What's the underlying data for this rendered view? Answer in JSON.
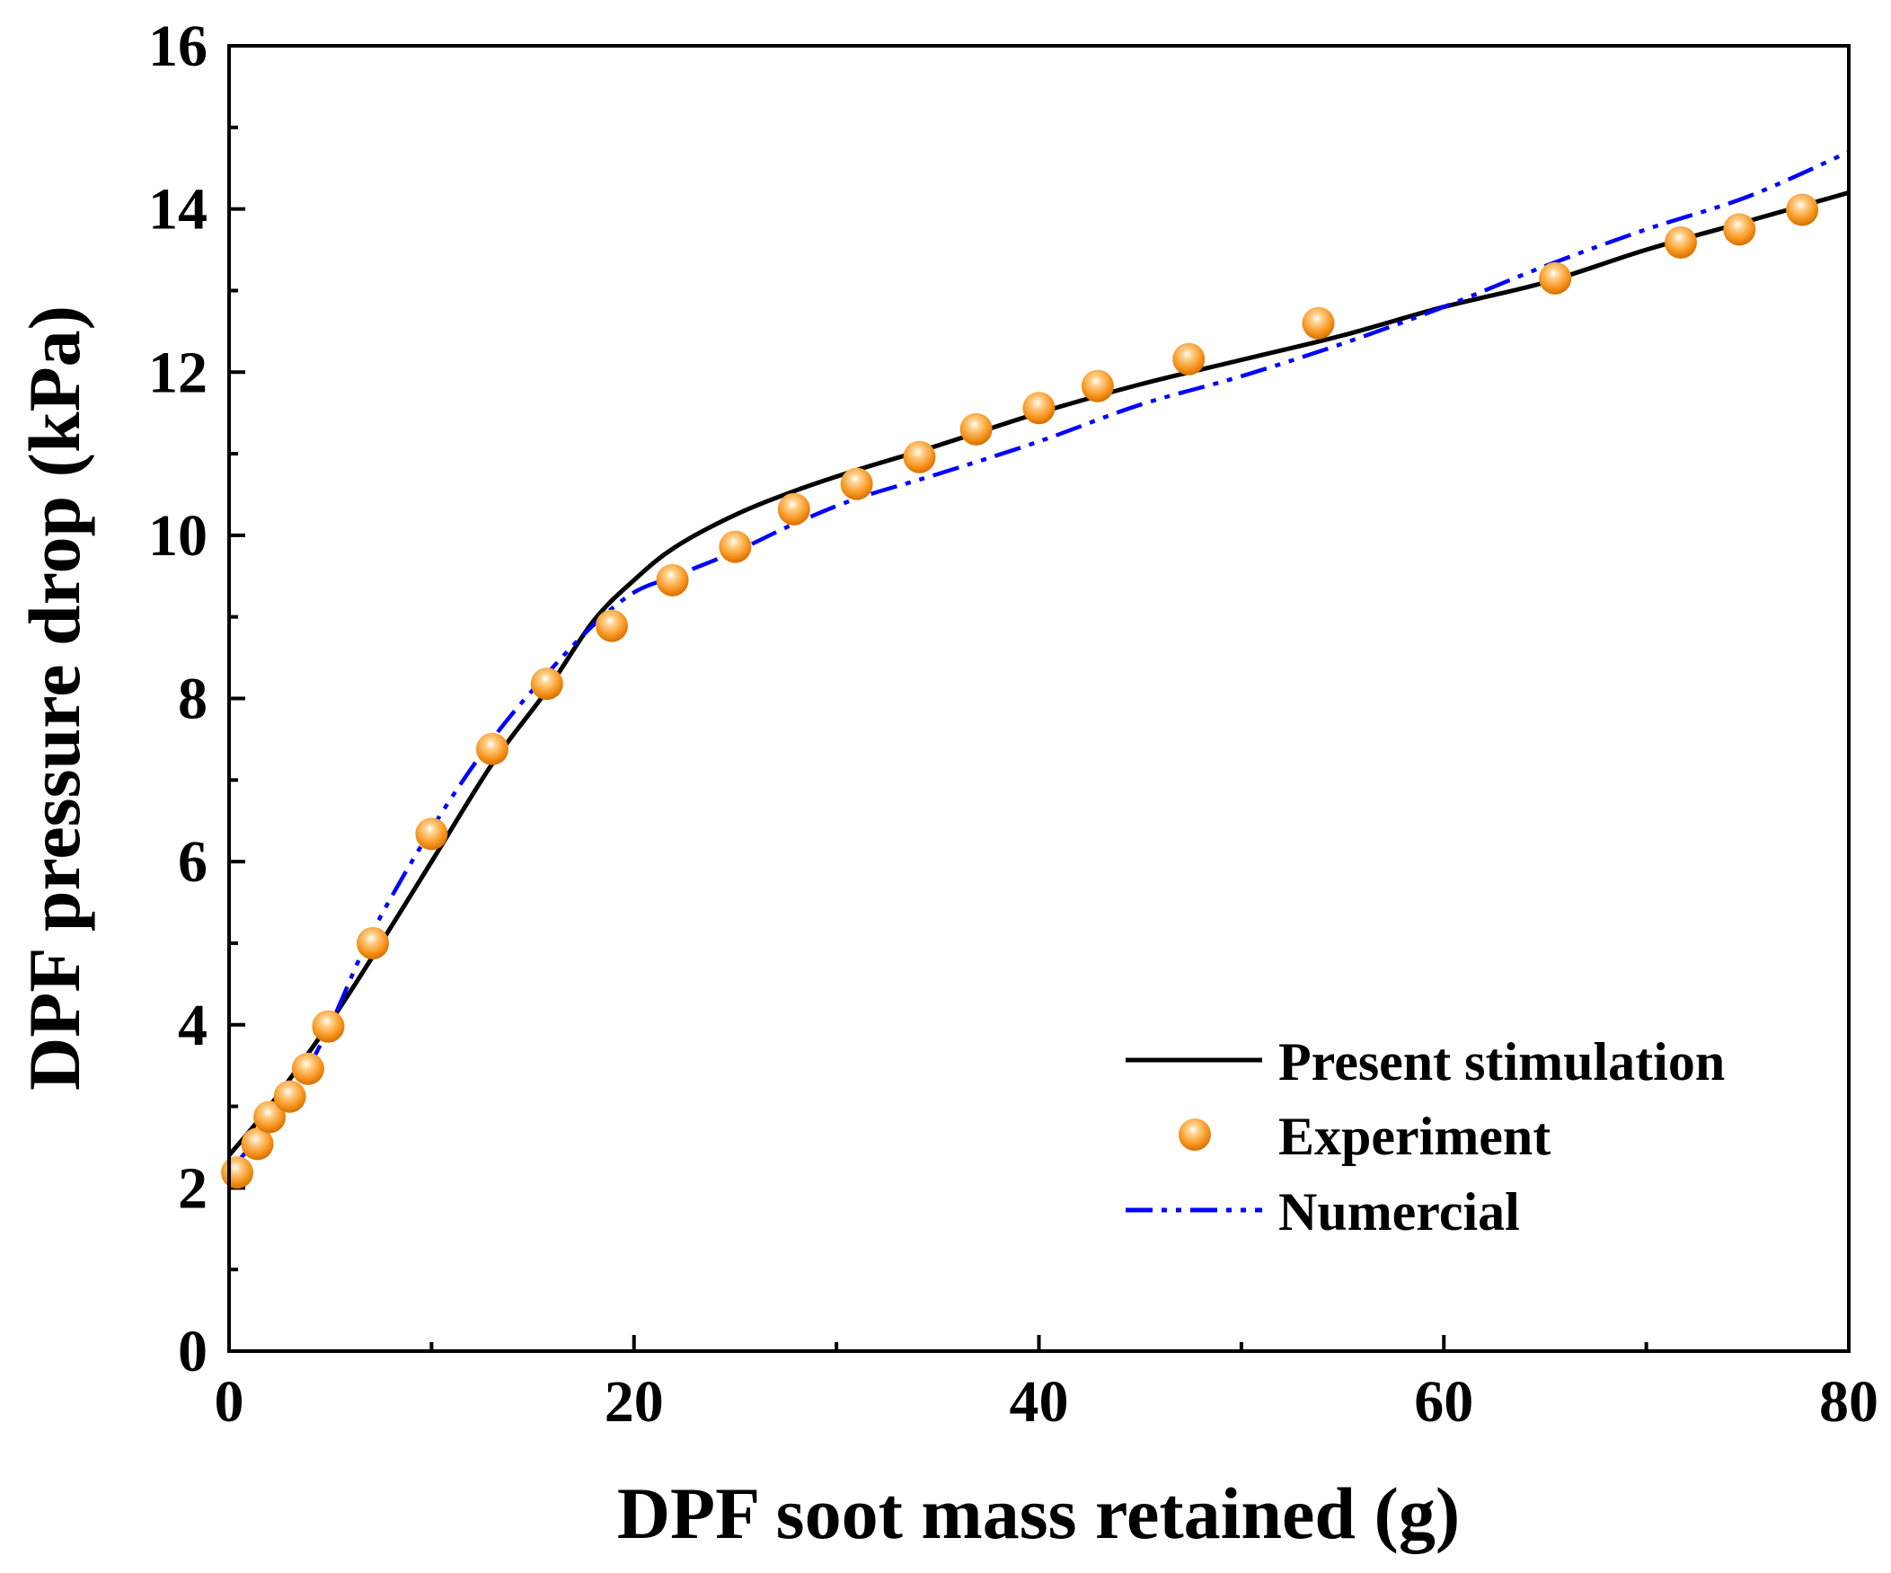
{
  "chart_data": {
    "type": "line",
    "title": "",
    "xlabel": "DPF soot mass retained (g)",
    "ylabel": "DPF pressure drop (kPa)",
    "xlim": [
      0,
      80
    ],
    "ylim": [
      0,
      16
    ],
    "xticks": [
      0,
      20,
      40,
      60,
      80
    ],
    "yticks": [
      0,
      2,
      4,
      6,
      8,
      10,
      12,
      14,
      16
    ],
    "grid": false,
    "legend_position": "bottom-right",
    "series": [
      {
        "name": "Present stimulation",
        "style": "solid",
        "color": "#000000",
        "x": [
          0,
          2,
          4.9,
          7,
          10,
          13,
          15.7,
          18,
          20,
          22,
          25,
          28,
          31,
          35,
          40,
          45,
          50,
          55,
          60,
          65,
          70,
          75,
          80
        ],
        "y": [
          2.4,
          3.0,
          4.0,
          4.8,
          6.0,
          7.2,
          8.1,
          8.95,
          9.45,
          9.85,
          10.25,
          10.55,
          10.8,
          11.1,
          11.5,
          11.85,
          12.15,
          12.45,
          12.8,
          13.1,
          13.5,
          13.85,
          14.2
        ]
      },
      {
        "name": "Experiment",
        "style": "marker",
        "color": "#f7941d",
        "x": [
          0.4,
          1.4,
          2.0,
          3.0,
          3.9,
          4.9,
          7.1,
          10.0,
          13.0,
          15.7,
          18.9,
          21.9,
          25.0,
          27.9,
          31.0,
          34.1,
          36.9,
          40.0,
          42.9,
          47.4,
          53.8,
          65.5,
          71.7,
          74.6,
          77.7
        ],
        "y": [
          2.19,
          2.54,
          2.87,
          3.12,
          3.46,
          3.98,
          5.0,
          6.34,
          7.38,
          8.18,
          8.89,
          9.45,
          9.86,
          10.32,
          10.63,
          10.96,
          11.3,
          11.56,
          11.83,
          12.16,
          12.6,
          13.15,
          13.59,
          13.75,
          13.99
        ]
      },
      {
        "name": "Numercial",
        "style": "dash-dot-dot",
        "color": "#0000ff",
        "x": [
          0,
          3,
          5,
          7,
          10,
          13,
          15.7,
          18,
          20,
          22,
          25,
          28,
          31,
          35,
          40,
          45,
          50,
          55,
          60,
          65,
          70,
          75,
          80
        ],
        "y": [
          2.2,
          3.1,
          4.0,
          5.1,
          6.4,
          7.5,
          8.3,
          8.9,
          9.3,
          9.5,
          9.8,
          10.15,
          10.45,
          10.75,
          11.15,
          11.6,
          11.95,
          12.35,
          12.8,
          13.3,
          13.75,
          14.15,
          14.7
        ]
      }
    ]
  }
}
